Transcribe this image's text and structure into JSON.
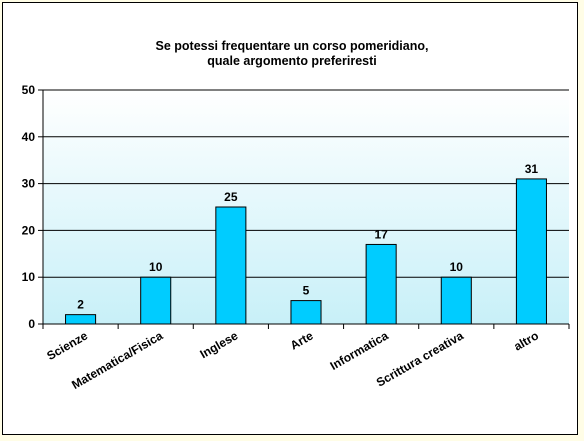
{
  "chart_data": {
    "type": "bar",
    "title_lines": [
      "Se potessi  frequentare un corso  pomeridiano,",
      "quale argomento preferiresti"
    ],
    "categories": [
      "Scienze",
      "Matematica/Fisica",
      "Inglese",
      "Arte",
      "Informatica",
      "Scrittura creativa",
      "altro"
    ],
    "values": [
      2,
      10,
      25,
      5,
      17,
      10,
      31
    ],
    "y_ticks": [
      "0",
      "10",
      "20",
      "30",
      "40",
      "50"
    ],
    "ylim": [
      0,
      50
    ],
    "grid": "horizontal",
    "legend": "none",
    "colors": {
      "bar_fill": "#00ccff",
      "bar_stroke": "#000000",
      "plot_top": "#ffffff",
      "plot_bottom": "#c8f0f8",
      "page_background": "#fffde6"
    }
  }
}
